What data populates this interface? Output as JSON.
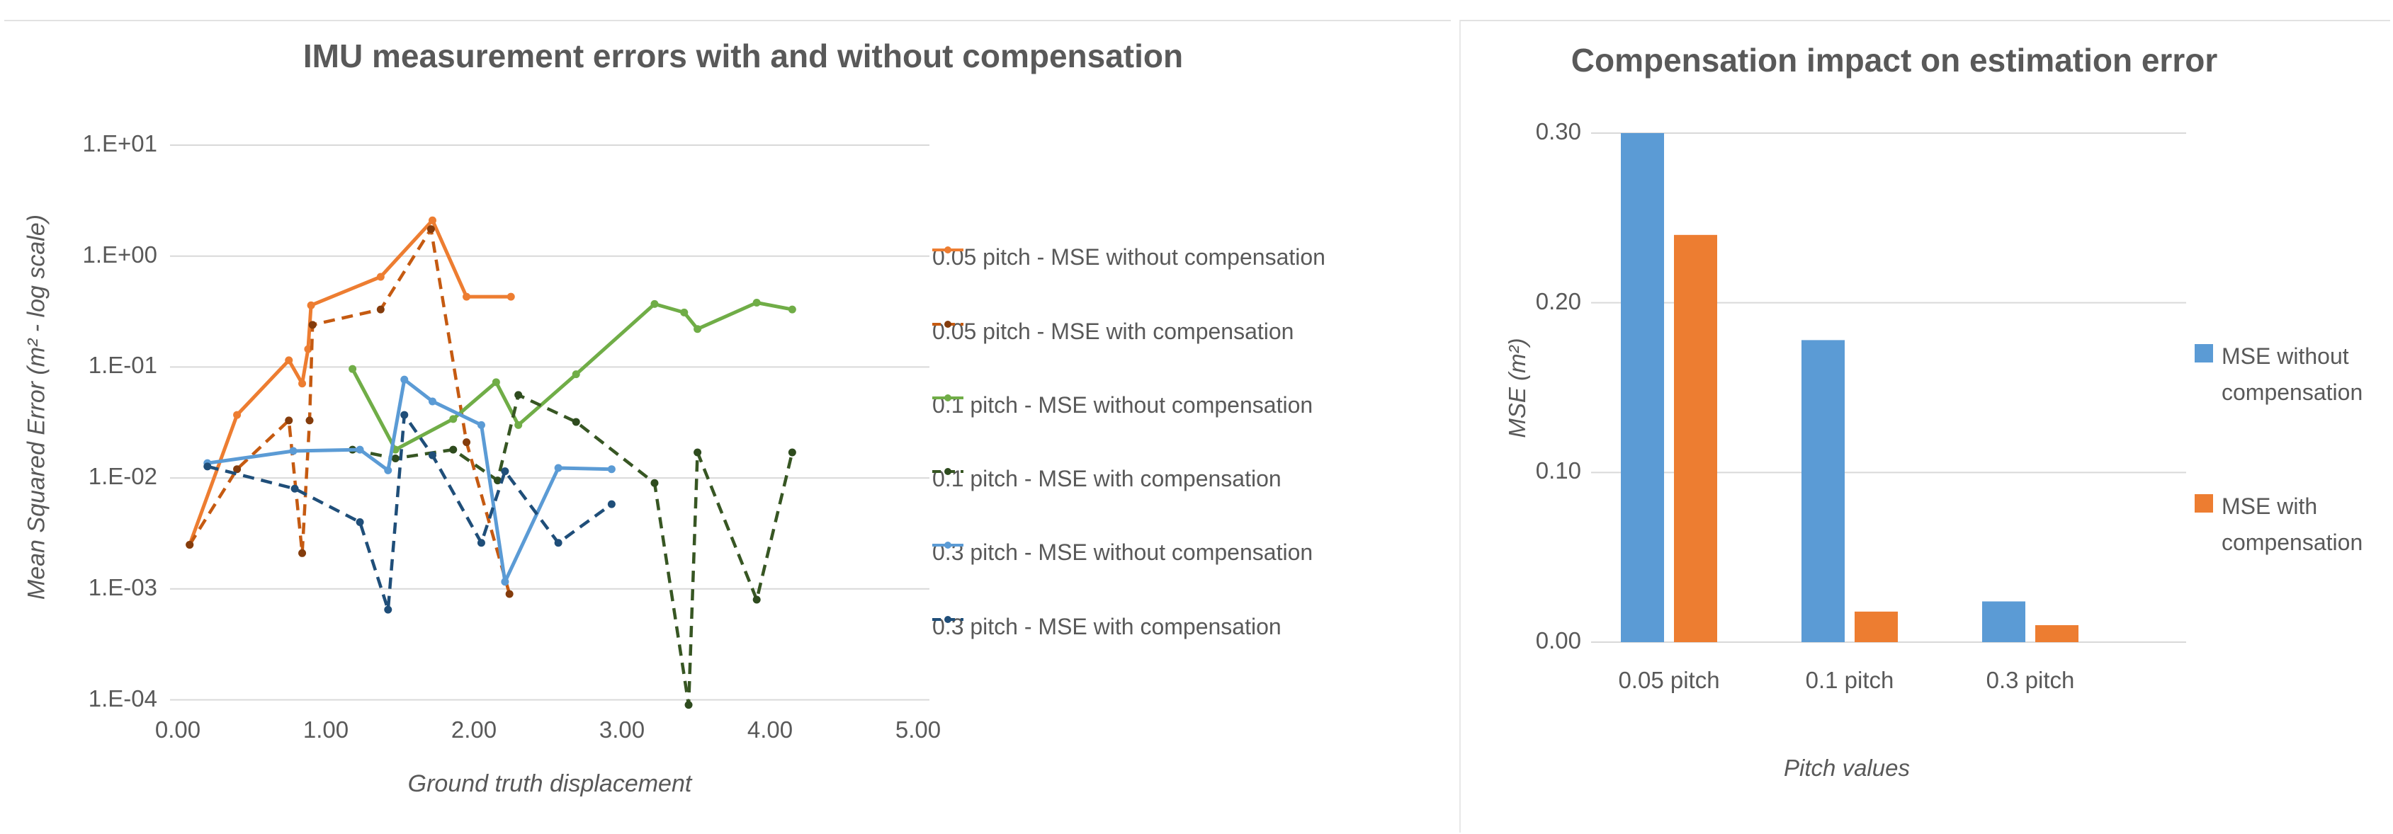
{
  "left_chart": {
    "title": "IMU measurement errors with and without compensation",
    "x_axis_title": "Ground truth displacement",
    "y_axis_title": "Mean Squared Error (m² - log scale)",
    "y_tick_labels": [
      "1.E+01",
      "1.E+00",
      "1.E-01",
      "1.E-02",
      "1.E-03",
      "1.E-04"
    ],
    "x_tick_labels": [
      "0.00",
      "1.00",
      "2.00",
      "3.00",
      "4.00",
      "5.00"
    ]
  },
  "right_chart": {
    "title": "Compensation impact on estimation error",
    "x_axis_title": "Pitch values",
    "y_axis_title": "MSE (m²)",
    "y_tick_labels": [
      "0.30",
      "0.20",
      "0.10",
      "0.00"
    ],
    "categories": [
      "0.05 pitch",
      "0.1 pitch",
      "0.3 pitch"
    ]
  },
  "colors": {
    "gridline": "#d9d9d9",
    "text": "#595959",
    "bar_blue": "#5B9BD5",
    "bar_orange": "#ED7D31"
  },
  "chart_data": [
    {
      "type": "line",
      "title": "IMU measurement errors with and without compensation",
      "xlabel": "Ground truth displacement",
      "ylabel": "Mean Squared Error (m² - log scale)",
      "x_range": [
        0,
        5
      ],
      "y_scale": "log",
      "y_range": [
        0.0001,
        10
      ],
      "grid": "horizontal",
      "legend_position": "right",
      "series": [
        {
          "name": "0.05 pitch - MSE without compensation",
          "color": "#ED7D31",
          "marker_color": "#ED7D31",
          "style": "solid",
          "points": [
            [
              0.08,
              0.0025
            ],
            [
              0.4,
              0.037
            ],
            [
              0.75,
              0.115
            ],
            [
              0.84,
              0.071
            ],
            [
              0.88,
              0.145
            ],
            [
              0.9,
              0.36
            ],
            [
              1.37,
              0.65
            ],
            [
              1.72,
              2.1
            ],
            [
              1.95,
              0.43
            ],
            [
              2.25,
              0.43
            ]
          ]
        },
        {
          "name": "0.05 pitch - MSE with compensation",
          "color": "#C55A11",
          "marker_color": "#843C0C",
          "style": "dashed",
          "points": [
            [
              0.08,
              0.0025
            ],
            [
              0.4,
              0.012
            ],
            [
              0.75,
              0.033
            ],
            [
              0.84,
              0.0021
            ],
            [
              0.89,
              0.033
            ],
            [
              0.91,
              0.24
            ],
            [
              1.37,
              0.33
            ],
            [
              1.71,
              1.75
            ],
            [
              1.95,
              0.021
            ],
            [
              2.24,
              0.0009
            ]
          ]
        },
        {
          "name": "0.1 pitch - MSE without compensation",
          "color": "#70AD47",
          "marker_color": "#70AD47",
          "style": "solid",
          "points": [
            [
              1.18,
              0.096
            ],
            [
              1.47,
              0.018
            ],
            [
              1.86,
              0.034
            ],
            [
              2.15,
              0.073
            ],
            [
              2.3,
              0.03
            ],
            [
              2.69,
              0.086
            ],
            [
              3.22,
              0.37
            ],
            [
              3.42,
              0.31
            ],
            [
              3.51,
              0.22
            ],
            [
              3.91,
              0.38
            ],
            [
              4.15,
              0.33
            ]
          ]
        },
        {
          "name": "0.1 pitch - MSE with compensation",
          "color": "#375623",
          "marker_color": "#2e4b1e",
          "style": "dashed",
          "points": [
            [
              1.18,
              0.018
            ],
            [
              1.47,
              0.015
            ],
            [
              1.86,
              0.018
            ],
            [
              2.16,
              0.0095
            ],
            [
              2.3,
              0.056
            ],
            [
              2.69,
              0.032
            ],
            [
              3.22,
              0.009
            ],
            [
              3.45,
              9e-05
            ],
            [
              3.51,
              0.017
            ],
            [
              3.91,
              0.0008
            ],
            [
              4.15,
              0.017
            ]
          ]
        },
        {
          "name": "0.3 pitch - MSE without compensation",
          "color": "#5B9BD5",
          "marker_color": "#5B9BD5",
          "style": "solid",
          "points": [
            [
              0.2,
              0.0136
            ],
            [
              0.78,
              0.0175
            ],
            [
              1.23,
              0.018
            ],
            [
              1.42,
              0.0117
            ],
            [
              1.53,
              0.077
            ],
            [
              1.72,
              0.049
            ],
            [
              2.05,
              0.03
            ],
            [
              2.21,
              0.00116
            ],
            [
              2.57,
              0.0123
            ],
            [
              2.93,
              0.012
            ]
          ]
        },
        {
          "name": "0.3 pitch - MSE with compensation",
          "color": "#1F4E79",
          "marker_color": "#1F4E79",
          "style": "dashed",
          "points": [
            [
              0.2,
              0.0127
            ],
            [
              0.79,
              0.008
            ],
            [
              1.23,
              0.004
            ],
            [
              1.42,
              0.00065
            ],
            [
              1.53,
              0.037
            ],
            [
              1.72,
              0.016
            ],
            [
              2.05,
              0.0026
            ],
            [
              2.21,
              0.0115
            ],
            [
              2.57,
              0.0026
            ],
            [
              2.93,
              0.0058
            ]
          ]
        }
      ]
    },
    {
      "type": "bar",
      "title": "Compensation impact on estimation error",
      "xlabel": "Pitch values",
      "ylabel": "MSE (m²)",
      "categories": [
        "0.05 pitch",
        "0.1 pitch",
        "0.3 pitch"
      ],
      "ylim": [
        0,
        0.3
      ],
      "y_ticks": [
        0.0,
        0.1,
        0.2,
        0.3
      ],
      "grid": "horizontal",
      "legend_position": "right",
      "series": [
        {
          "name": "MSE without compensation",
          "color": "#5B9BD5",
          "values": [
            0.3,
            0.178,
            0.024
          ]
        },
        {
          "name": "MSE with compensation",
          "color": "#ED7D31",
          "values": [
            0.24,
            0.018,
            0.01
          ]
        }
      ]
    }
  ]
}
